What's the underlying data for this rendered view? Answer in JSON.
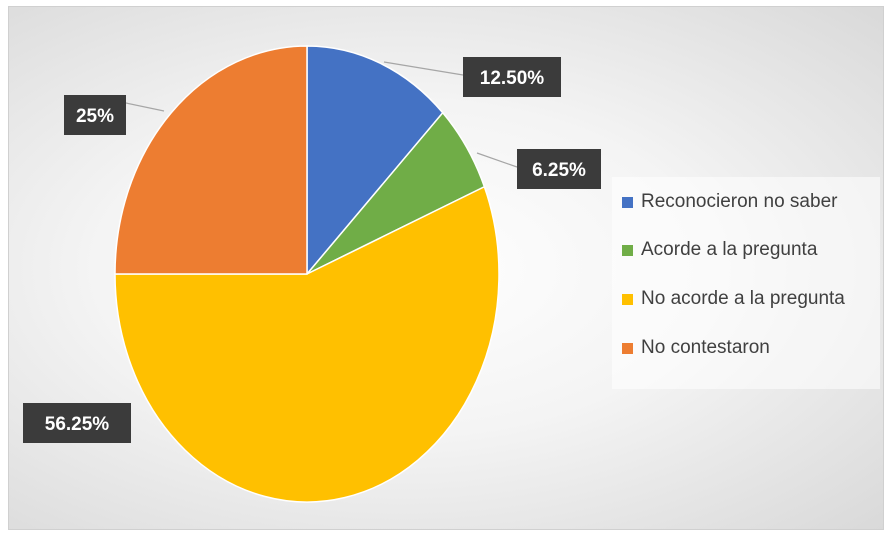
{
  "chart_data": {
    "type": "pie",
    "categories": [
      "Reconocieron no saber",
      "Acorde a la pregunta",
      "No acorde a la pregunta",
      "No contestaron"
    ],
    "values": [
      12.5,
      6.25,
      56.25,
      25
    ],
    "data_labels": [
      "12.50%",
      "6.25%",
      "56.25%",
      "25%"
    ],
    "colors": [
      "#4472C4",
      "#70AD47",
      "#FFC000",
      "#ED7D31"
    ],
    "label_style": {
      "background": "#3b3b3b",
      "text_color": "#ffffff"
    },
    "legend_position": "right",
    "start_angle": "top, clockwise"
  }
}
